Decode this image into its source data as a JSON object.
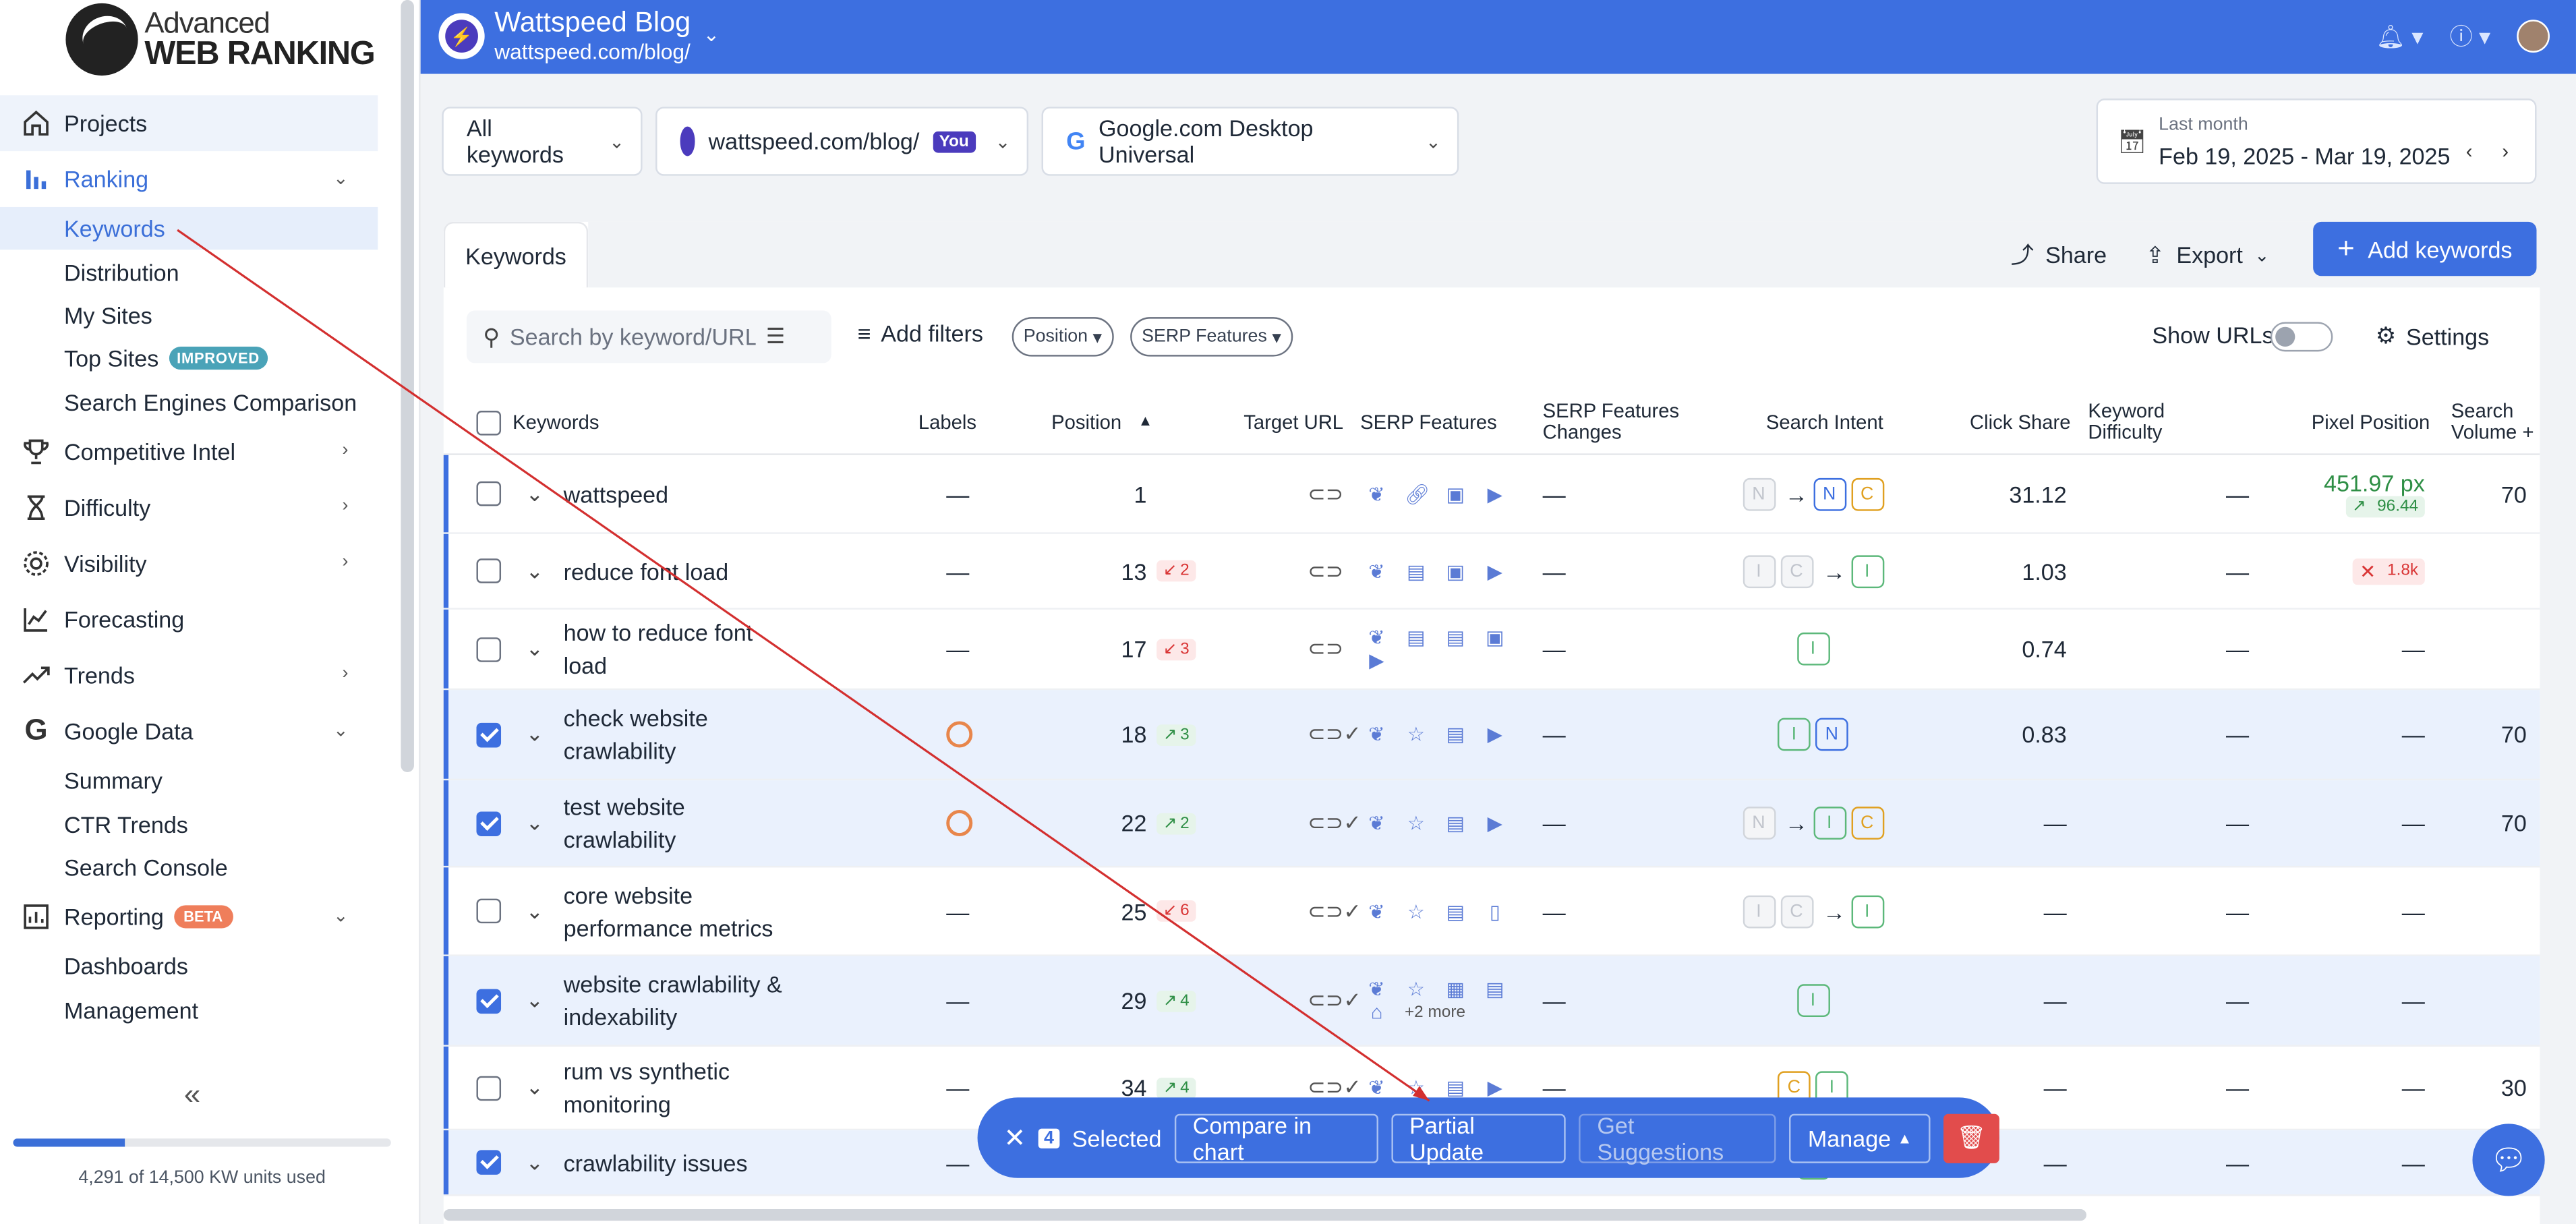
{
  "sidebar": {
    "logo_line1": "Advanced",
    "logo_line2": "WEB RANKING",
    "items": [
      {
        "label": "Projects",
        "icon": "home-icon"
      },
      {
        "label": "Ranking",
        "icon": "bar-chart-icon"
      },
      {
        "label": "Competitive Intel",
        "icon": "trophy-icon"
      },
      {
        "label": "Difficulty",
        "icon": "hourglass-icon"
      },
      {
        "label": "Visibility",
        "icon": "gear-icon"
      },
      {
        "label": "Forecasting",
        "icon": "chart-icon"
      },
      {
        "label": "Trends",
        "icon": "trend-icon"
      },
      {
        "label": "Google Data",
        "icon": "google-icon"
      },
      {
        "label": "Reporting",
        "icon": "report-icon"
      }
    ],
    "ranking_sub": [
      "Keywords",
      "Distribution",
      "My Sites",
      "Top Sites",
      "Search Engines Comparison"
    ],
    "top_sites_badge": "IMPROVED",
    "google_sub": [
      "Summary",
      "CTR Trends",
      "Search Console"
    ],
    "reporting_badge": "BETA",
    "reporting_sub": [
      "Dashboards",
      "Management"
    ],
    "usage_text": "4,291 of 14,500 KW units used",
    "usage_fraction": 0.296
  },
  "header": {
    "site_title": "Wattspeed Blog",
    "site_url": "wattspeed.com/blog/"
  },
  "filters": {
    "keywords_dd": "All keywords",
    "site_dd": "wattspeed.com/blog/",
    "you_badge": "You",
    "engine_dd": "Google.com Desktop Universal",
    "date_label": "Last month",
    "date_range": "Feb 19, 2025 - Mar 19, 2025"
  },
  "panel": {
    "tab": "Keywords",
    "share": "Share",
    "export": "Export",
    "add_keywords": "Add keywords",
    "search_placeholder": "Search by keyword/URL",
    "add_filters": "Add filters",
    "pill_position": "Position",
    "pill_serp": "SERP Features",
    "show_urls": "Show URLs",
    "settings": "Settings"
  },
  "columns": {
    "keywords": "Keywords",
    "labels": "Labels",
    "position": "Position",
    "target_url": "Target URL",
    "serp_features": "SERP Features",
    "serp_changes_1": "SERP Features",
    "serp_changes_2": "Changes",
    "search_intent": "Search Intent",
    "click_share": "Click Share",
    "kd_1": "Keyword",
    "kd_2": "Difficulty",
    "pixel_position": "Pixel Position",
    "search_volume_1": "Search",
    "search_volume_2": "Volume +"
  },
  "rows": [
    {
      "kw1": "wattspeed",
      "kw2": "",
      "label": "—",
      "pos": "1",
      "chg": "",
      "changes": "—",
      "click": "31.12",
      "kd": "—",
      "pixel": "451.97 px",
      "pixel2": "96.44",
      "vol": "70"
    },
    {
      "kw1": "reduce font load",
      "kw2": "",
      "label": "—",
      "pos": "13",
      "chg": "2",
      "changes": "—",
      "click": "1.03",
      "kd": "—",
      "pixel": "1.8k",
      "pixel2": "",
      "vol": ""
    },
    {
      "kw1": "how to reduce font",
      "kw2": "load",
      "label": "—",
      "pos": "17",
      "chg": "3",
      "changes": "—",
      "click": "0.74",
      "kd": "—",
      "pixel": "—",
      "pixel2": "",
      "vol": ""
    },
    {
      "kw1": "check website",
      "kw2": "crawlability",
      "label": "",
      "pos": "18",
      "chg": "3",
      "changes": "—",
      "click": "0.83",
      "kd": "—",
      "pixel": "—",
      "pixel2": "",
      "vol": "70"
    },
    {
      "kw1": "test website",
      "kw2": "crawlability",
      "label": "",
      "pos": "22",
      "chg": "2",
      "changes": "—",
      "click": "—",
      "kd": "—",
      "pixel": "—",
      "pixel2": "",
      "vol": "70"
    },
    {
      "kw1": "core website",
      "kw2": "performance metrics",
      "label": "—",
      "pos": "25",
      "chg": "6",
      "changes": "—",
      "click": "—",
      "kd": "—",
      "pixel": "—",
      "pixel2": "",
      "vol": ""
    },
    {
      "kw1": "website crawlability &",
      "kw2": "indexability",
      "label": "—",
      "pos": "29",
      "chg": "4",
      "changes": "—",
      "click": "—",
      "kd": "—",
      "pixel": "—",
      "pixel2": "",
      "vol": "",
      "more": "+2 more"
    },
    {
      "kw1": "rum vs synthetic",
      "kw2": "monitoring",
      "label": "—",
      "pos": "34",
      "chg": "4",
      "changes": "—",
      "click": "—",
      "kd": "—",
      "pixel": "—",
      "pixel2": "",
      "vol": "30"
    },
    {
      "kw1": "crawlability issues",
      "kw2": "",
      "label": "—",
      "pos": "",
      "chg": "",
      "changes": "",
      "click": "—",
      "kd": "—",
      "pixel": "—",
      "pixel2": "",
      "vol": ""
    }
  ],
  "actionbar": {
    "count": "4",
    "selected": "Selected",
    "compare": "Compare in chart",
    "partial": "Partial Update",
    "suggestions": "Get Suggestions",
    "manage": "Manage"
  },
  "colors": {
    "accent": "#3d6fe0",
    "selected_row": "#eaf1fd",
    "danger": "#e24c4c"
  }
}
